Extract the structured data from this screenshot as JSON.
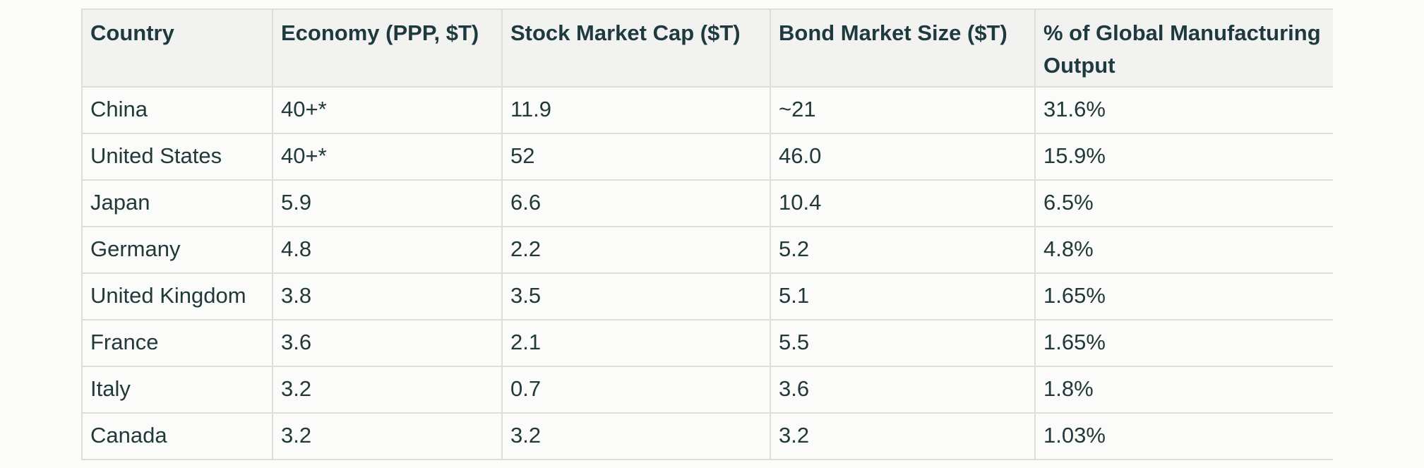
{
  "table": {
    "headers": [
      "Country",
      "Economy (PPP, $T)",
      "Stock Market Cap ($T)",
      "Bond Market Size ($T)",
      "% of Global Manufacturing Output"
    ],
    "rows": [
      [
        "China",
        "40+*",
        "11.9",
        "~21",
        "31.6%"
      ],
      [
        "United States",
        "40+*",
        "52",
        "46.0",
        "15.9%"
      ],
      [
        "Japan",
        "5.9",
        "6.6",
        "10.4",
        "6.5%"
      ],
      [
        "Germany",
        "4.8",
        "2.2",
        "5.2",
        "4.8%"
      ],
      [
        "United Kingdom",
        "3.8",
        "3.5",
        "5.1",
        "1.65%"
      ],
      [
        "France",
        "3.6",
        "2.1",
        "5.5",
        "1.65%"
      ],
      [
        "Italy",
        "3.2",
        "0.7",
        "3.6",
        "1.8%"
      ],
      [
        "Canada",
        "3.2",
        "3.2",
        "3.2",
        "1.03%"
      ]
    ]
  }
}
